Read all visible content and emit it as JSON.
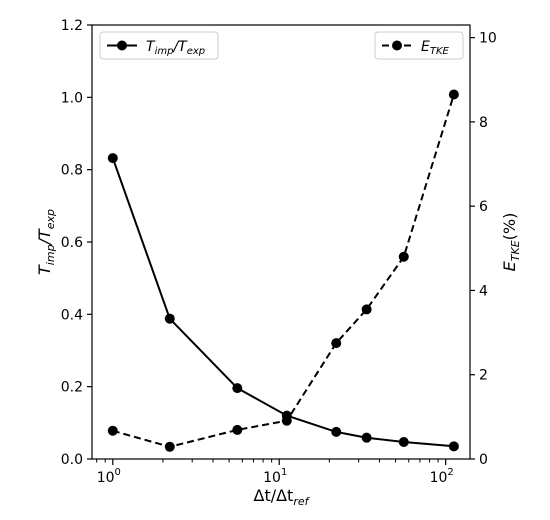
{
  "chart_data": {
    "type": "line",
    "x_label": {
      "main": "Δt/Δt",
      "sub": "ref"
    },
    "x_scale": "log",
    "x_range": [
      0.75,
      140
    ],
    "x_ticks": [
      {
        "value": 1,
        "base": "10",
        "exp": "0"
      },
      {
        "value": 10,
        "base": "10",
        "exp": "1"
      },
      {
        "value": 100,
        "base": "10",
        "exp": "2"
      }
    ],
    "left_axis": {
      "label": {
        "main": "T",
        "sub1": "imp",
        "mid": "/T",
        "sub2": "exp"
      },
      "range": [
        0,
        1.2
      ],
      "ticks": [
        "0.0",
        "0.2",
        "0.4",
        "0.6",
        "0.8",
        "1.0",
        "1.2"
      ]
    },
    "right_axis": {
      "label": {
        "main": "E",
        "sub": "TKE",
        "suffix": "(%)"
      },
      "range": [
        0,
        10.3
      ],
      "ticks": [
        "0",
        "2",
        "4",
        "6",
        "8",
        "10"
      ]
    },
    "series": [
      {
        "name": {
          "main": "T",
          "sub1": "imp",
          "mid": "/T",
          "sub2": "exp"
        },
        "axis": "left",
        "style": "solid",
        "legend_position": "top-left",
        "x": [
          1,
          2.2,
          5.6,
          11.1,
          22,
          33.5,
          56,
          112
        ],
        "y": [
          0.832,
          0.388,
          0.196,
          0.12,
          0.075,
          0.059,
          0.047,
          0.035
        ]
      },
      {
        "name": {
          "main": "E",
          "sub": "TKE"
        },
        "axis": "right",
        "style": "dashed",
        "legend_position": "top-right",
        "x": [
          1,
          2.2,
          5.6,
          11.1,
          22,
          33.5,
          56,
          112
        ],
        "y": [
          0.67,
          0.29,
          0.69,
          0.91,
          2.75,
          3.55,
          4.8,
          8.65
        ]
      }
    ],
    "grid": false
  }
}
